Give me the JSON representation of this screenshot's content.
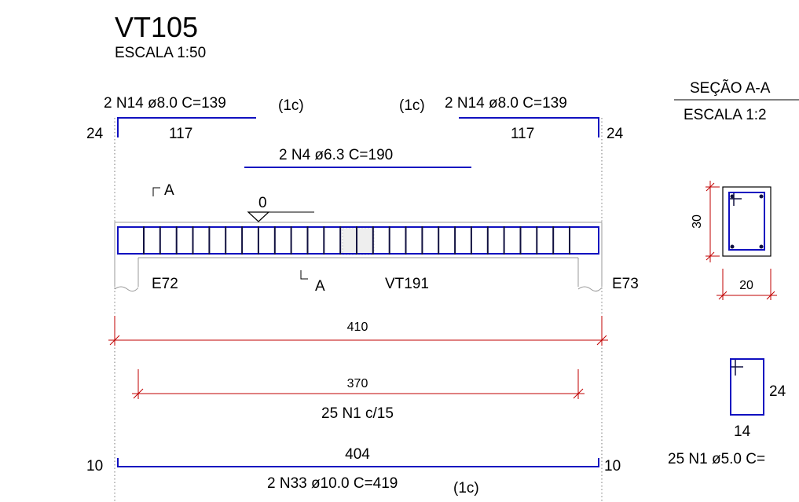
{
  "colors": {
    "rebar": "#1010c0",
    "dimension": "#c00000",
    "concrete": "#000000",
    "stirrup_dark": "#101040"
  },
  "title": {
    "name": "VT105",
    "scale": "ESCALA 1:50"
  },
  "top_bars": {
    "left": {
      "label": "2 N14 ø8.0 C=139",
      "layer": "(1c)",
      "length": "117",
      "hook": "24"
    },
    "right": {
      "label": "2 N14 ø8.0 C=139",
      "layer": "(1c)",
      "length": "117",
      "hook": "24"
    },
    "middle": {
      "label": "2 N4 ø6.3 C=190"
    }
  },
  "beam": {
    "section_mark": "A",
    "level": "0",
    "support_left": "E72",
    "support_right": "E73",
    "crossing_beam": "VT191"
  },
  "dimensions": {
    "total": "410",
    "stirrup_zone": "370",
    "stirrup_spec": "25 N1 c/15"
  },
  "bottom_bar": {
    "length": "404",
    "hook_left": "10",
    "hook_right": "10",
    "label": "2 N33 ø10.0 C=419",
    "layer": "(1c)"
  },
  "section": {
    "title": "SEÇÃO A-A",
    "scale": "ESCALA 1:2",
    "height": "30",
    "width": "20"
  },
  "stirrup": {
    "height": "24",
    "width": "14",
    "label": "25 N1 ø5.0 C="
  }
}
